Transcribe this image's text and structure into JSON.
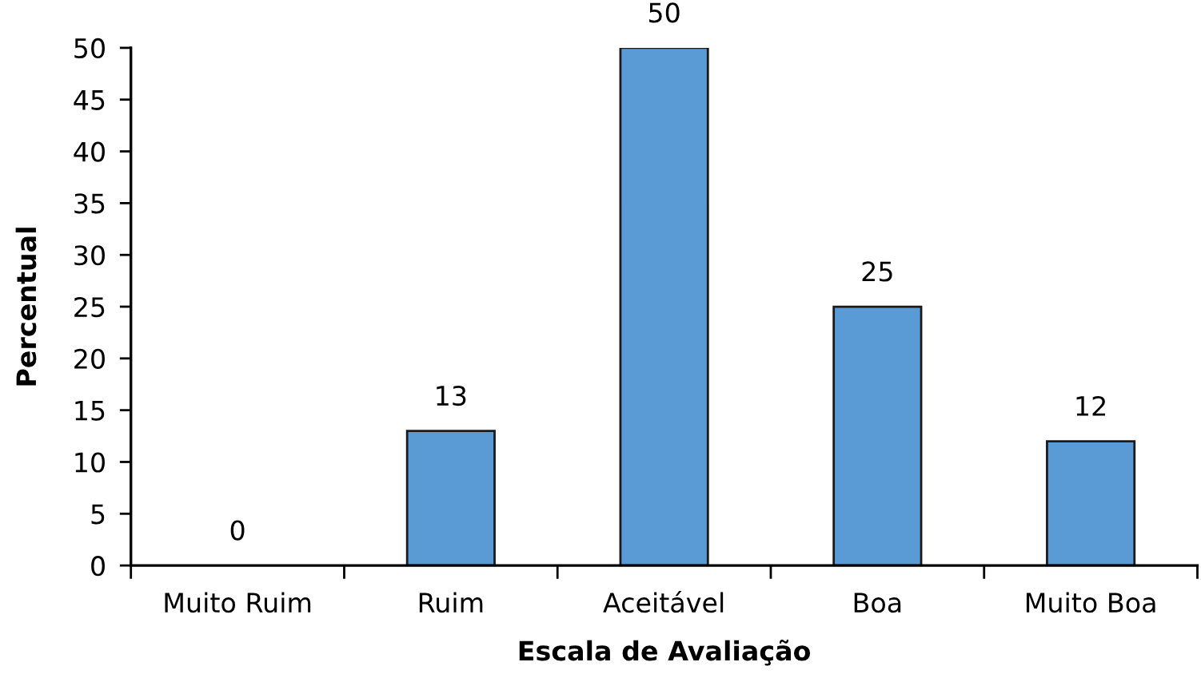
{
  "chart_data": {
    "type": "bar",
    "xlabel": "Escala de Avaliação",
    "ylabel": "Percentual",
    "categories": [
      "Muito Ruim",
      "Ruim",
      "Aceitável",
      "Boa",
      "Muito Boa"
    ],
    "values": [
      0,
      13,
      50,
      25,
      12
    ],
    "color": "#5b9bd5",
    "ylim": [
      0,
      50
    ],
    "yticks": [
      0,
      5,
      10,
      15,
      20,
      25,
      30,
      35,
      40,
      45,
      50
    ],
    "data_labels": true,
    "grid": false,
    "legend": false
  }
}
